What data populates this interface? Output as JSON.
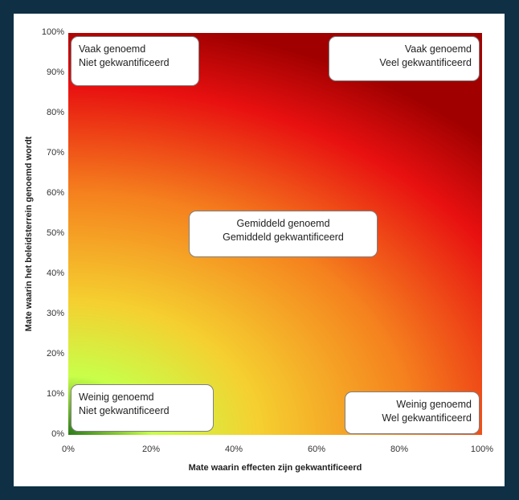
{
  "chart_data": {
    "type": "heatmap",
    "title": "",
    "xlabel": "Mate waarin effecten zijn gekwantificeerd",
    "ylabel": "Mate waarin het beleidsterrein genoemd wordt",
    "xlim": [
      0,
      100
    ],
    "ylim": [
      0,
      100
    ],
    "x_ticks": [
      "0%",
      "20%",
      "40%",
      "60%",
      "80%",
      "100%"
    ],
    "y_ticks": [
      "0%",
      "10%",
      "20%",
      "30%",
      "40%",
      "50%",
      "60%",
      "70%",
      "80%",
      "90%",
      "100%"
    ],
    "grid": false,
    "color_scale": [
      "#2e7d1a",
      "#c8ff4a",
      "#f5d030",
      "#f5821e",
      "#e81010",
      "#a00000"
    ],
    "annotations": [
      {
        "line1": "Vaak genoemd",
        "line2": "Niet gekwantificeerd",
        "x": 0,
        "y": 100
      },
      {
        "line1": "Vaak genoemd",
        "line2": "Veel gekwantificeerd",
        "x": 100,
        "y": 100
      },
      {
        "line1": "Gemiddeld genoemd",
        "line2": "Gemiddeld gekwantificeerd",
        "x": 50,
        "y": 50
      },
      {
        "line1": "Weinig genoemd",
        "line2": "Niet gekwantificeerd",
        "x": 0,
        "y": 0
      },
      {
        "line1": "Weinig genoemd",
        "line2": "Wel gekwantificeerd",
        "x": 100,
        "y": 0
      }
    ]
  }
}
